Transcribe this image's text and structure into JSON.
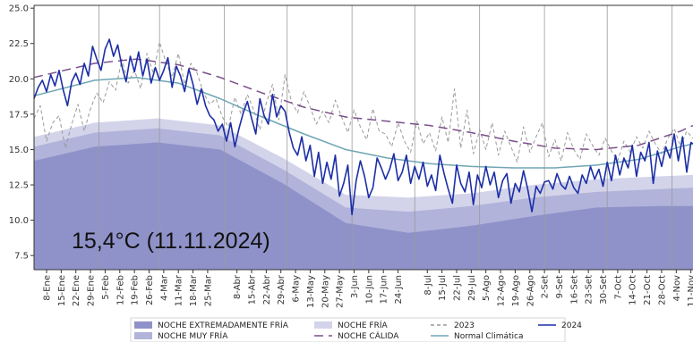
{
  "chart_data": {
    "type": "line",
    "title": "",
    "xlabel": "",
    "ylabel": "",
    "ylim": [
      6.5,
      25.2
    ],
    "y_ticks": [
      "7.5",
      "10.0",
      "12.5",
      "15.0",
      "17.5",
      "20.0",
      "22.5",
      "25.0"
    ],
    "x_ticks": [
      "8-Ene",
      "15-Ene",
      "22-Ene",
      "29-Ene",
      "5-Feb",
      "12-Feb",
      "19-Feb",
      "26-Feb",
      "4-Mar",
      "11-Mar",
      "18-Mar",
      "25-Mar",
      "8-Abr",
      "15-Abr",
      "22-Abr",
      "29-Abr",
      "6-May",
      "13-May",
      "20-May",
      "27-May",
      "3-Jun",
      "10-Jun",
      "17-Jun",
      "24-Jun",
      "8-Jul",
      "15-Jul",
      "22-Jul",
      "29-Jul",
      "5-Ago",
      "12-Ago",
      "19-Ago",
      "26-Ago",
      "2-Set",
      "9-Set",
      "16-Set",
      "23-Set",
      "30-Set",
      "7-Oct",
      "14-Oct",
      "21-Oct",
      "28-Oct",
      "4-Nov",
      "11-Nov"
    ],
    "x_tick_days": [
      7,
      14,
      21,
      28,
      35,
      42,
      49,
      56,
      63,
      70,
      77,
      84,
      98,
      105,
      112,
      119,
      126,
      133,
      140,
      147,
      154,
      161,
      168,
      175,
      189,
      196,
      203,
      210,
      217,
      224,
      231,
      238,
      245,
      252,
      259,
      266,
      273,
      280,
      287,
      294,
      301,
      308,
      315
    ],
    "x_range_days": [
      1,
      316
    ],
    "annotation": "15,4°C (11.11.2024)",
    "grid": "vertical",
    "bands": [
      {
        "name": "NOCHE EXTREMADAMENTE FRÍA",
        "color": "#8f92c9",
        "x": [
          1,
          30,
          60,
          90,
          120,
          150,
          180,
          210,
          240,
          270,
          300,
          316
        ],
        "y": [
          14.2,
          15.2,
          15.5,
          15.0,
          12.6,
          9.8,
          9.1,
          9.6,
          10.3,
          10.9,
          11.0,
          11.0
        ]
      },
      {
        "name": "NOCHE MUY FRÍA",
        "color": "#b1b3da",
        "x": [
          1,
          30,
          60,
          90,
          120,
          150,
          180,
          210,
          240,
          270,
          300,
          316
        ],
        "y": [
          15.2,
          16.2,
          16.5,
          16.0,
          13.6,
          10.9,
          10.6,
          11.0,
          11.6,
          12.0,
          12.2,
          12.3
        ]
      },
      {
        "name": "NOCHE FRÍA",
        "color": "#d3d4ea",
        "x": [
          1,
          30,
          60,
          90,
          120,
          150,
          180,
          210,
          240,
          270,
          300,
          316
        ],
        "y": [
          15.9,
          16.9,
          17.2,
          16.7,
          14.4,
          11.8,
          11.6,
          11.9,
          12.5,
          12.9,
          13.1,
          13.2
        ]
      }
    ],
    "series": [
      {
        "name": "2023",
        "color": "#999999",
        "style": "dashed",
        "width": 1.0,
        "x": [
          1,
          4,
          7,
          10,
          13,
          16,
          19,
          22,
          25,
          28,
          31,
          34,
          37,
          40,
          43,
          46,
          49,
          52,
          55,
          58,
          61,
          64,
          67,
          70,
          73,
          76,
          79,
          82,
          85,
          88,
          91,
          94,
          97,
          100,
          103,
          106,
          109,
          112,
          115,
          118,
          121,
          124,
          127,
          130,
          133,
          136,
          139,
          142,
          145,
          148,
          151,
          154,
          157,
          160,
          163,
          166,
          169,
          172,
          175,
          178,
          181,
          184,
          187,
          190,
          193,
          196,
          199,
          202,
          205,
          208,
          211,
          214,
          217,
          220,
          223,
          226,
          229,
          232,
          235,
          238,
          241,
          244,
          247,
          250,
          253,
          256,
          259,
          262,
          265,
          268,
          271,
          274,
          277,
          280,
          283,
          286,
          289,
          292,
          295,
          298,
          301,
          304,
          307,
          310,
          313,
          316
        ],
        "y": [
          17.2,
          18.1,
          15.6,
          16.9,
          17.4,
          15.1,
          16.8,
          18.2,
          16.3,
          17.9,
          19.0,
          18.3,
          19.8,
          19.2,
          21.4,
          19.7,
          20.6,
          19.3,
          21.8,
          20.4,
          22.6,
          21.2,
          20.1,
          21.8,
          19.6,
          21.1,
          20.4,
          19.0,
          18.2,
          18.6,
          17.3,
          16.6,
          18.7,
          17.5,
          18.9,
          17.8,
          16.4,
          18.3,
          19.6,
          17.1,
          20.3,
          18.4,
          17.6,
          19.1,
          18.0,
          16.8,
          17.7,
          16.9,
          18.5,
          17.3,
          16.2,
          17.8,
          16.6,
          15.7,
          17.9,
          16.3,
          16.1,
          15.2,
          16.9,
          15.6,
          14.8,
          17.0,
          15.4,
          16.2,
          14.9,
          17.3,
          15.5,
          19.3,
          15.1,
          17.8,
          14.7,
          16.4,
          15.0,
          16.9,
          14.6,
          16.3,
          15.2,
          14.1,
          16.6,
          14.8,
          15.9,
          16.9,
          14.5,
          15.7,
          14.2,
          16.2,
          15.0,
          14.3,
          16.1,
          15.3,
          14.6,
          15.8,
          14.9,
          14.2,
          15.6,
          14.8,
          15.9,
          15.1,
          16.3,
          15.4,
          14.7,
          15.8,
          16.5,
          15.2,
          16.3,
          15.8
        ]
      },
      {
        "name": "NOCHE CÁLIDA",
        "color": "#7b4e8a",
        "style": "longdash",
        "width": 1.5,
        "x": [
          1,
          30,
          50,
          70,
          90,
          110,
          130,
          150,
          170,
          190,
          210,
          230,
          250,
          270,
          290,
          310,
          316
        ],
        "y": [
          20.1,
          21.1,
          21.4,
          21.0,
          20.1,
          19.0,
          18.0,
          17.3,
          17.0,
          16.7,
          16.2,
          15.6,
          15.1,
          15.0,
          15.3,
          16.3,
          16.7
        ]
      },
      {
        "name": "Normal Climática",
        "color": "#6fa5b5",
        "style": "solid",
        "width": 1.5,
        "x": [
          1,
          30,
          50,
          70,
          90,
          110,
          130,
          150,
          170,
          190,
          210,
          230,
          250,
          270,
          290,
          310,
          316
        ],
        "y": [
          18.8,
          19.9,
          20.1,
          19.7,
          18.6,
          17.3,
          16.1,
          15.0,
          14.4,
          14.0,
          13.8,
          13.7,
          13.7,
          13.9,
          14.3,
          15.2,
          15.4
        ]
      },
      {
        "name": "2024",
        "color": "#1c2ea6",
        "style": "solid",
        "width": 1.6,
        "x": [
          1,
          3,
          5,
          7,
          9,
          11,
          13,
          15,
          17,
          19,
          21,
          23,
          25,
          27,
          29,
          31,
          33,
          35,
          37,
          39,
          41,
          43,
          45,
          47,
          49,
          51,
          53,
          55,
          57,
          59,
          61,
          63,
          65,
          67,
          69,
          71,
          73,
          75,
          77,
          79,
          81,
          83,
          85,
          87,
          89,
          91,
          93,
          95,
          97,
          99,
          101,
          103,
          105,
          107,
          109,
          111,
          113,
          115,
          117,
          119,
          121,
          123,
          125,
          127,
          129,
          131,
          133,
          135,
          137,
          139,
          141,
          143,
          145,
          147,
          149,
          151,
          153,
          155,
          157,
          159,
          161,
          163,
          165,
          167,
          169,
          171,
          173,
          175,
          177,
          179,
          181,
          183,
          185,
          187,
          189,
          191,
          193,
          195,
          197,
          199,
          201,
          203,
          205,
          207,
          209,
          211,
          213,
          215,
          217,
          219,
          221,
          223,
          225,
          227,
          229,
          231,
          233,
          235,
          237,
          239,
          241,
          243,
          245,
          247,
          249,
          251,
          253,
          255,
          257,
          259,
          261,
          263,
          265,
          267,
          269,
          271,
          273,
          275,
          277,
          279,
          281,
          283,
          285,
          287,
          289,
          291,
          293,
          295,
          297,
          299,
          301,
          303,
          305,
          307,
          309,
          311,
          313,
          315,
          316
        ],
        "y": [
          18.6,
          19.4,
          19.9,
          19.1,
          20.3,
          19.5,
          20.6,
          19.2,
          18.1,
          19.8,
          20.4,
          19.6,
          21.1,
          20.2,
          22.3,
          21.4,
          20.6,
          22.1,
          22.8,
          21.6,
          22.4,
          20.9,
          19.8,
          21.6,
          20.5,
          21.9,
          20.2,
          21.4,
          19.7,
          20.8,
          19.9,
          20.6,
          21.5,
          19.4,
          20.9,
          20.2,
          19.1,
          20.7,
          19.6,
          18.2,
          19.3,
          18.1,
          17.4,
          17.1,
          16.3,
          16.8,
          15.6,
          16.9,
          15.2,
          16.5,
          17.6,
          18.4,
          17.2,
          16.1,
          18.6,
          17.4,
          16.8,
          18.9,
          17.3,
          18.1,
          17.7,
          16.2,
          15.1,
          14.6,
          15.9,
          14.2,
          15.3,
          13.1,
          14.8,
          12.6,
          14.1,
          12.9,
          14.6,
          11.7,
          12.6,
          13.9,
          10.4,
          12.8,
          14.2,
          13.1,
          11.6,
          12.3,
          14.4,
          13.7,
          12.9,
          13.6,
          14.7,
          12.8,
          13.4,
          14.6,
          12.6,
          13.8,
          12.9,
          14.1,
          12.4,
          13.2,
          12.1,
          14.6,
          13.3,
          12.2,
          11.2,
          13.9,
          12.6,
          12.0,
          13.4,
          11.1,
          13.2,
          12.3,
          13.8,
          12.5,
          13.4,
          11.6,
          12.8,
          13.3,
          11.2,
          12.6,
          12.0,
          13.5,
          12.2,
          10.6,
          12.4,
          11.9,
          12.7,
          12.8,
          12.2,
          13.3,
          12.5,
          12.2,
          13.1,
          12.3,
          11.9,
          13.2,
          12.6,
          13.8,
          12.9,
          13.6,
          12.4,
          14.1,
          12.8,
          14.6,
          13.2,
          14.4,
          13.7,
          15.3,
          13.1,
          14.8,
          14.2,
          15.5,
          12.6,
          14.9,
          13.8,
          15.2,
          14.4,
          16.1,
          14.2,
          15.9,
          13.4,
          15.5,
          15.4
        ]
      }
    ],
    "legend": {
      "placement": "bottom",
      "entries": [
        {
          "label": "NOCHE EXTREMADAMENTE FRÍA",
          "kind": "patch",
          "color": "#8f92c9"
        },
        {
          "label": "NOCHE MUY FRÍA",
          "kind": "patch",
          "color": "#b1b3da"
        },
        {
          "label": "NOCHE FRÍA",
          "kind": "patch",
          "color": "#d3d4ea"
        },
        {
          "label": "NOCHE CÁLIDA",
          "kind": "line",
          "color": "#7b4e8a",
          "style": "longdash"
        },
        {
          "label": "2023",
          "kind": "line",
          "color": "#999999",
          "style": "dashed"
        },
        {
          "label": "Normal Climática",
          "kind": "line",
          "color": "#6fa5b5",
          "style": "solid"
        },
        {
          "label": "2024",
          "kind": "line",
          "color": "#1c2ea6",
          "style": "solid"
        }
      ]
    }
  }
}
